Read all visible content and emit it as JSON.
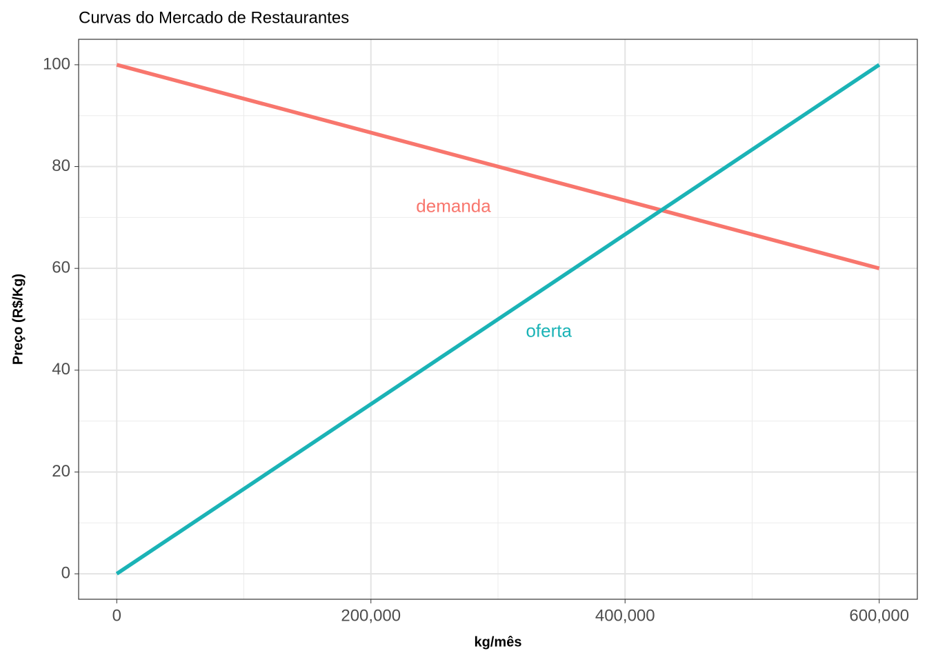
{
  "chart_data": {
    "type": "line",
    "title": "Curvas do Mercado de Restaurantes",
    "x_label": "kg/mês",
    "y_label": "Preço (R$/Kg)",
    "x": [
      0,
      600000
    ],
    "series": [
      {
        "name": "demanda",
        "color": "#F8766D",
        "values": [
          100,
          60
        ],
        "label_at": [
          265000,
          72
        ]
      },
      {
        "name": "oferta",
        "color": "#1BB3B6",
        "values": [
          0,
          100
        ],
        "label_at": [
          340000,
          47.5
        ]
      }
    ],
    "xlim": [
      -30000,
      630000
    ],
    "ylim": [
      -5,
      105
    ],
    "xticks": [
      0,
      {
        "value": 200000,
        "label": "200,000"
      },
      {
        "value": 400000,
        "label": "400,000"
      },
      {
        "value": 600000,
        "label": "600,000"
      }
    ],
    "yticks": [
      0,
      20,
      40,
      60,
      80,
      100
    ],
    "x_minor_grid": [
      100000,
      300000,
      500000
    ],
    "y_minor_grid": [
      10,
      30,
      50,
      70,
      90
    ],
    "grid": true
  }
}
